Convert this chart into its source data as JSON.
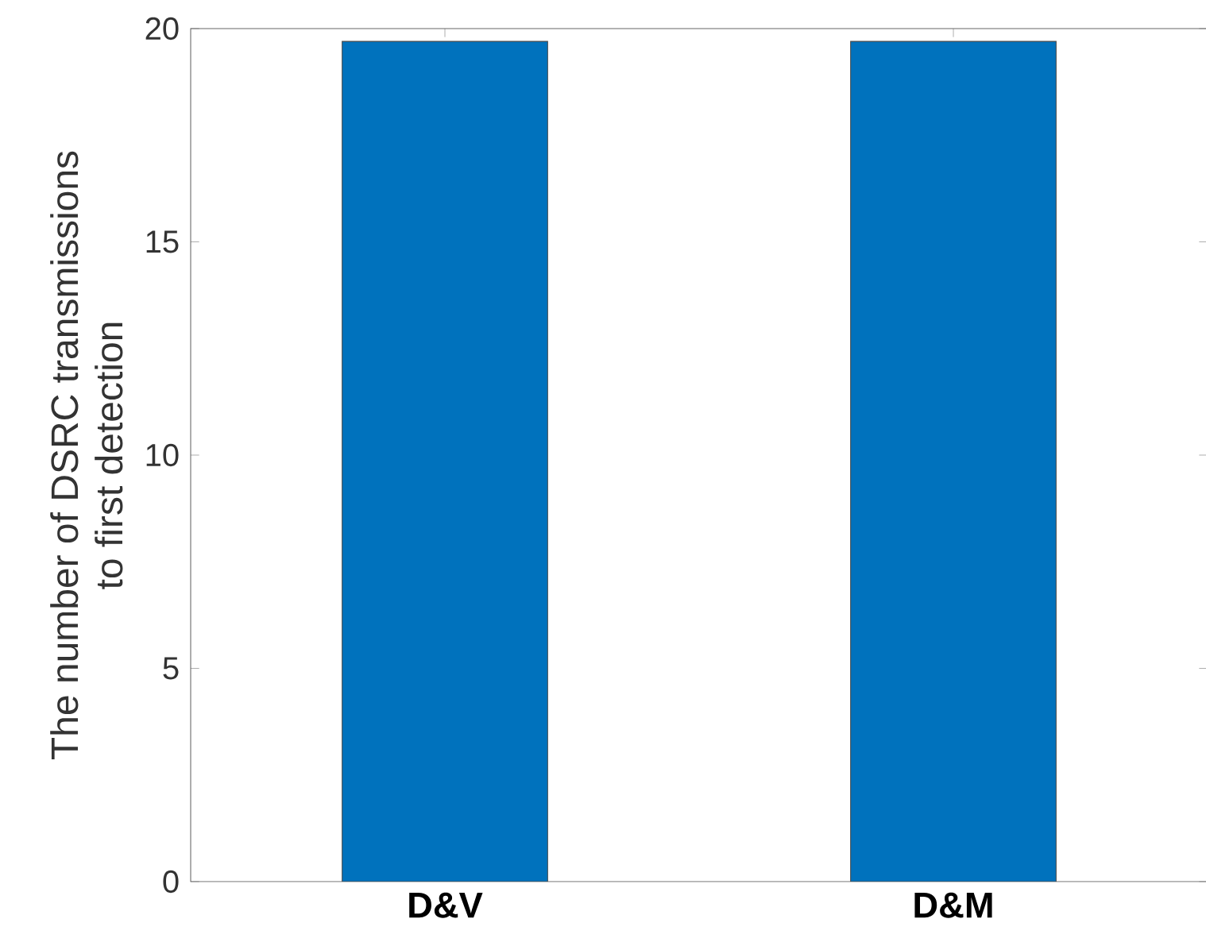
{
  "chart_data": {
    "type": "bar",
    "ylabel": "The number of DSRC transmissions\nto first detection",
    "categories": [
      "D&V",
      "D&M"
    ],
    "values": [
      19.7,
      19.7
    ],
    "color": "#0072bd",
    "ylim": [
      0,
      20
    ],
    "yticks": [
      0,
      5,
      10,
      15,
      20
    ],
    "grid": false
  }
}
